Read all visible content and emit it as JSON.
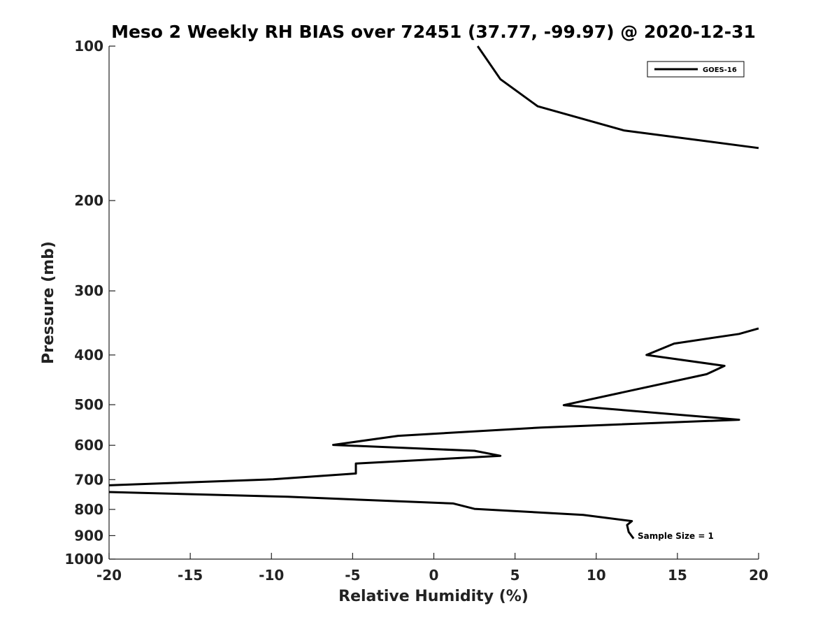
{
  "chart_data": {
    "type": "line",
    "title": "Meso 2 Weekly RH BIAS over 72451 (37.77, -99.97) @ 2020-12-31",
    "xlabel": "Relative Humidity (%)",
    "ylabel": "Pressure (mb)",
    "xlim": [
      -20,
      20
    ],
    "ylim": [
      100,
      1000
    ],
    "y_scale": "log",
    "y_reversed": true,
    "x_ticks": [
      "-20",
      "-15",
      "-10",
      "-5",
      "0",
      "5",
      "10",
      "15",
      "20"
    ],
    "y_ticks": [
      "100",
      "200",
      "300",
      "400",
      "500",
      "600",
      "700",
      "800",
      "900",
      "1000"
    ],
    "grid": false,
    "legend_position": "top-right",
    "series": [
      {
        "name": "GOES-16",
        "color": "#000000",
        "x": [
          2.7,
          4.1,
          6.4,
          11.7,
          20,
          null,
          20,
          18.8,
          14.8,
          13.1,
          17.9,
          16.8,
          8.0,
          18.8,
          6.6,
          -2.2,
          -6.2,
          2.5,
          4.1,
          -4.8,
          -4.8,
          -9.9,
          -20,
          null,
          -20,
          -9.0,
          1.2,
          2.5,
          9.2,
          12.2,
          11.9,
          12.0,
          12.3
        ],
        "y": [
          100,
          116,
          131,
          146,
          158,
          null,
          355,
          364,
          380,
          400,
          420,
          436,
          501,
          535,
          554,
          575,
          599,
          615,
          629,
          651,
          681,
          699,
          718,
          null,
          740,
          756,
          779,
          798,
          820,
          843,
          858,
          885,
          912
        ]
      }
    ],
    "annotations": [
      "Sample Size = 1"
    ]
  }
}
